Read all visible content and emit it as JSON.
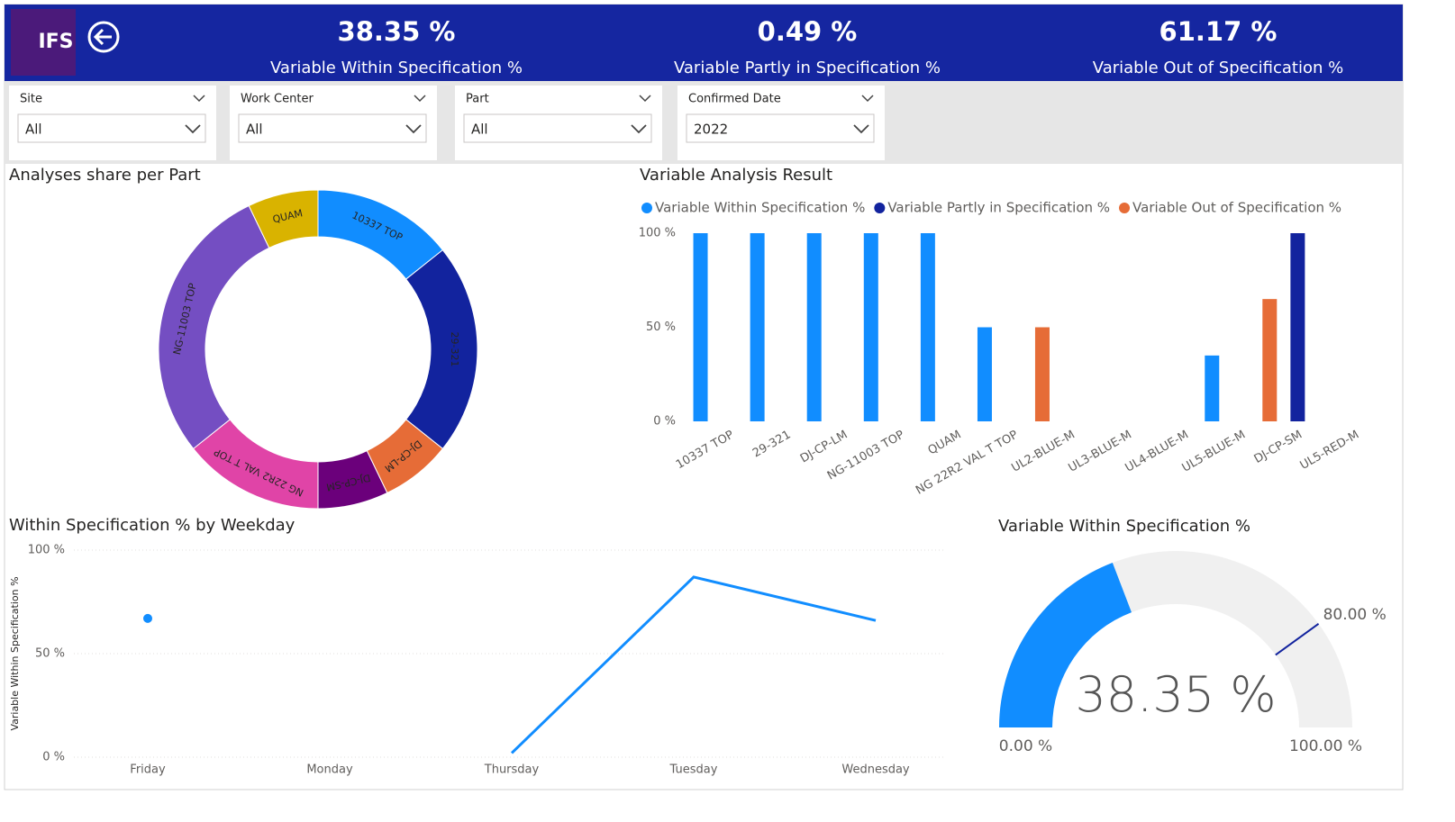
{
  "header": {
    "logo": "IFS",
    "kpis": [
      {
        "value": "38.35 %",
        "label": "Variable Within Specification %"
      },
      {
        "value": "0.49 %",
        "label": "Variable Partly in Specification %"
      },
      {
        "value": "61.17 %",
        "label": "Variable Out of Specification %"
      }
    ]
  },
  "filters": [
    {
      "label": "Site",
      "value": "All"
    },
    {
      "label": "Work Center",
      "value": "All"
    },
    {
      "label": "Part",
      "value": "All"
    },
    {
      "label": "Confirmed Date",
      "value": "2022"
    }
  ],
  "chart_data": [
    {
      "type": "donut",
      "title": "Analyses share per Part",
      "categories": [
        "10337 TOP",
        "29-321",
        "DJ-CP-LM",
        "DJ-CP-SM",
        "NG 22R2 VAL T TOP",
        "NG-11003 TOP",
        "QUAM"
      ],
      "values": [
        2,
        3,
        1,
        1,
        2,
        4,
        1
      ],
      "colors": [
        "#118dff",
        "#12239e",
        "#e66c37",
        "#6b007b",
        "#e044a7",
        "#744ec2",
        "#d9b300"
      ]
    },
    {
      "type": "bar",
      "title": "Variable Analysis Result",
      "categories": [
        "10337 TOP",
        "29-321",
        "DJ-CP-LM",
        "NG-11003 TOP",
        "QUAM",
        "NG 22R2 VAL T TOP",
        "UL2-BLUE-M",
        "UL3-BLUE-M",
        "UL4-BLUE-M",
        "UL5-BLUE-M",
        "DJ-CP-SM",
        "UL5-RED-M"
      ],
      "series": [
        {
          "name": "Variable Within Specification %",
          "color": "#118dff",
          "values": [
            100,
            100,
            100,
            100,
            100,
            50,
            null,
            null,
            null,
            35,
            null,
            null
          ]
        },
        {
          "name": "Variable Partly in Specification %",
          "color": "#12239e",
          "values": [
            null,
            null,
            null,
            null,
            null,
            null,
            null,
            null,
            null,
            null,
            100,
            null
          ]
        },
        {
          "name": "Variable Out of Specification %",
          "color": "#e66c37",
          "values": [
            null,
            null,
            null,
            null,
            null,
            50,
            null,
            null,
            null,
            65,
            null,
            null
          ]
        }
      ],
      "ylim": [
        0,
        100
      ],
      "yticks": [
        {
          "value": 0,
          "label": "0 %"
        },
        {
          "value": 50,
          "label": "50 %"
        },
        {
          "value": 100,
          "label": "100 %"
        }
      ]
    },
    {
      "type": "line",
      "title": "Within Specification % by Weekday",
      "ylabel": "Variable Within Specification %",
      "categories": [
        "Friday",
        "Monday",
        "Thursday",
        "Tuesday",
        "Wednesday"
      ],
      "values": [
        67,
        null,
        2,
        87,
        66
      ],
      "color": "#118dff",
      "ylim": [
        0,
        100
      ],
      "yticks": [
        {
          "value": 0,
          "label": "0 %"
        },
        {
          "value": 50,
          "label": "50 %"
        },
        {
          "value": 100,
          "label": "100 %"
        }
      ],
      "grid": true
    },
    {
      "type": "gauge",
      "title": "Variable Within Specification %",
      "value": 38.35,
      "value_label": "38.35 %",
      "color": "#118dff",
      "ylim": [
        0,
        100
      ],
      "yticks": [
        {
          "value": 0,
          "label": "0.00 %"
        },
        {
          "value": 100,
          "label": "100.00 %"
        }
      ],
      "target": {
        "value": 80,
        "label": "80.00 %"
      },
      "target_color": "#12239e"
    }
  ]
}
